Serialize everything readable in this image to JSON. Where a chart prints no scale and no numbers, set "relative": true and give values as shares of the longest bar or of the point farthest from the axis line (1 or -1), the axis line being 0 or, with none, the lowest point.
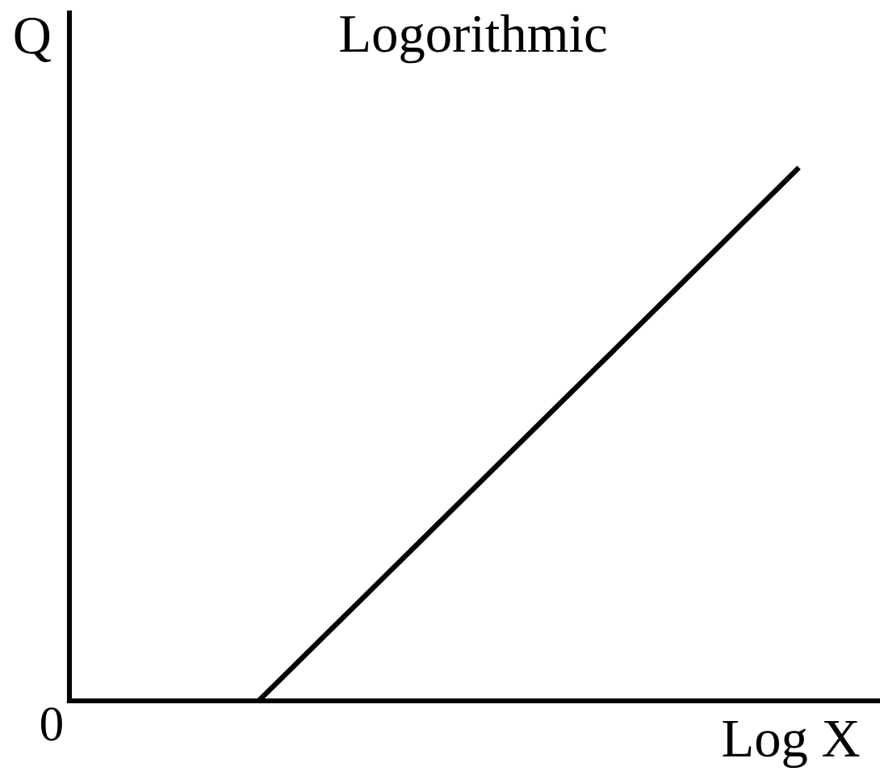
{
  "chart_data": {
    "type": "line",
    "title": "Logorithmic",
    "xlabel": "Log X",
    "ylabel": "Q",
    "annotations": [
      "0"
    ],
    "relative": true,
    "categories": [
      null,
      null,
      null,
      null,
      null,
      null,
      null,
      null,
      null,
      null,
      null,
      null,
      null,
      null,
      null
    ],
    "series": [
      {
        "color": "#000000",
        "values": [
          null,
          null,
          null,
          0,
          0.1,
          0.2,
          0.3,
          0.4,
          0.5,
          0.6,
          0.7,
          0.8,
          0.9,
          1,
          null
        ]
      }
    ]
  }
}
